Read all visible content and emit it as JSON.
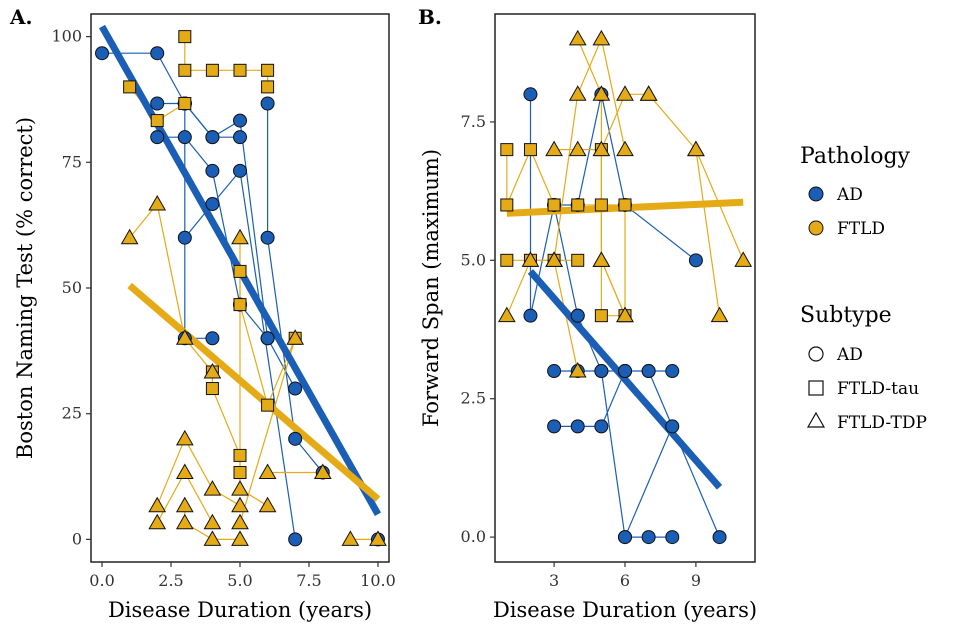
{
  "colors": {
    "AD": "#1b5eb5",
    "FTLD": "#e5ab17"
  },
  "legend": {
    "pathology_title": "Pathology",
    "pathology_items": [
      "AD",
      "FTLD"
    ],
    "subtype_title": "Subtype",
    "subtype_items": [
      "AD",
      "FTLD-tau",
      "FTLD-TDP"
    ]
  },
  "chart_data": [
    {
      "type": "scatter",
      "panel_label": "A.",
      "xlabel": "Disease Duration (years)",
      "ylabel": "Boston Naming Test (% correct)",
      "xlim": [
        -0.4,
        10.4
      ],
      "ylim": [
        -4.5,
        104.5
      ],
      "xticks": [
        0,
        2.5,
        5,
        7.5,
        10
      ],
      "xtick_labels": [
        "0.0",
        "2.5",
        "5.0",
        "7.5",
        "10.0"
      ],
      "yticks": [
        0,
        25,
        50,
        75,
        100
      ],
      "ytick_labels": [
        "0",
        "25",
        "50",
        "75",
        "100"
      ],
      "trend_lines": [
        {
          "pathology": "AD",
          "x": [
            0,
            10
          ],
          "y": [
            102,
            5
          ]
        },
        {
          "pathology": "FTLD",
          "x": [
            1,
            10
          ],
          "y": [
            50.5,
            8
          ]
        }
      ],
      "trajectories": [
        {
          "pathology": "AD",
          "subtype": "AD",
          "x": [
            0,
            2,
            3
          ],
          "y": [
            96.7,
            96.7,
            86.7
          ]
        },
        {
          "pathology": "AD",
          "subtype": "AD",
          "x": [
            2,
            3,
            4,
            5
          ],
          "y": [
            86.7,
            86.7,
            80,
            80
          ]
        },
        {
          "pathology": "AD",
          "subtype": "AD",
          "x": [
            2,
            3,
            4,
            5
          ],
          "y": [
            80,
            80,
            73.3,
            46.7
          ]
        },
        {
          "pathology": "AD",
          "subtype": "AD",
          "x": [
            3,
            4,
            5,
            6
          ],
          "y": [
            86.7,
            80,
            83.3,
            40
          ]
        },
        {
          "pathology": "AD",
          "subtype": "AD",
          "x": [
            3,
            4,
            5,
            7
          ],
          "y": [
            60,
            66.7,
            73.3,
            0
          ]
        },
        {
          "pathology": "AD",
          "subtype": "AD",
          "x": [
            3,
            3,
            4
          ],
          "y": [
            86.7,
            40,
            40
          ]
        },
        {
          "pathology": "AD",
          "subtype": "AD",
          "x": [
            5,
            6,
            7
          ],
          "y": [
            46.7,
            40,
            30
          ]
        },
        {
          "pathology": "AD",
          "subtype": "AD",
          "x": [
            6,
            6,
            7,
            8
          ],
          "y": [
            86.7,
            60,
            20,
            13.3
          ]
        },
        {
          "pathology": "AD",
          "subtype": "AD",
          "x": [
            10
          ],
          "y": [
            0
          ]
        },
        {
          "pathology": "FTLD",
          "subtype": "FTLD-tau",
          "x": [
            1,
            2,
            3
          ],
          "y": [
            90,
            83.3,
            86.7
          ]
        },
        {
          "pathology": "FTLD",
          "subtype": "FTLD-tau",
          "x": [
            3,
            3,
            4,
            5,
            6,
            6
          ],
          "y": [
            100,
            93.3,
            93.3,
            93.3,
            93.3,
            90
          ]
        },
        {
          "pathology": "FTLD",
          "subtype": "FTLD-tau",
          "x": [
            4,
            4,
            5,
            5
          ],
          "y": [
            33.3,
            30,
            16.7,
            13.3
          ]
        },
        {
          "pathology": "FTLD",
          "subtype": "FTLD-tau",
          "x": [
            5,
            5,
            6,
            7
          ],
          "y": [
            53.3,
            46.7,
            26.7,
            40
          ]
        },
        {
          "pathology": "FTLD",
          "subtype": "FTLD-TDP",
          "x": [
            1,
            2,
            3,
            4
          ],
          "y": [
            60,
            66.7,
            40,
            33.3
          ]
        },
        {
          "pathology": "FTLD",
          "subtype": "FTLD-TDP",
          "x": [
            2,
            3,
            4,
            5
          ],
          "y": [
            6.7,
            20,
            10,
            6.7
          ]
        },
        {
          "pathology": "FTLD",
          "subtype": "FTLD-TDP",
          "x": [
            2,
            3,
            4
          ],
          "y": [
            3.3,
            13.3,
            3.3
          ]
        },
        {
          "pathology": "FTLD",
          "subtype": "FTLD-TDP",
          "x": [
            3,
            3,
            4,
            5
          ],
          "y": [
            6.7,
            3.3,
            0,
            0
          ]
        },
        {
          "pathology": "FTLD",
          "subtype": "FTLD-TDP",
          "x": [
            5,
            5,
            6
          ],
          "y": [
            60,
            10,
            6.7
          ]
        },
        {
          "pathology": "FTLD",
          "subtype": "FTLD-TDP",
          "x": [
            6,
            8
          ],
          "y": [
            13.3,
            13.3
          ]
        },
        {
          "pathology": "FTLD",
          "subtype": "FTLD-TDP",
          "x": [
            5,
            7
          ],
          "y": [
            3.3,
            40
          ]
        },
        {
          "pathology": "FTLD",
          "subtype": "FTLD-TDP",
          "x": [
            9,
            10
          ],
          "y": [
            0,
            0
          ]
        }
      ]
    },
    {
      "type": "scatter",
      "panel_label": "B.",
      "xlabel": "Disease Duration (years)",
      "ylabel": "Forward Span (maximum)",
      "xlim": [
        0.5,
        11.5
      ],
      "ylim": [
        -0.45,
        9.45
      ],
      "xticks": [
        3,
        6,
        9
      ],
      "xtick_labels": [
        "3",
        "6",
        "9"
      ],
      "yticks": [
        0,
        2.5,
        5,
        7.5
      ],
      "ytick_labels": [
        "0.0",
        "2.5",
        "5.0",
        "7.5"
      ],
      "trend_lines": [
        {
          "pathology": "AD",
          "x": [
            2,
            10
          ],
          "y": [
            4.8,
            0.9
          ]
        },
        {
          "pathology": "FTLD",
          "x": [
            1,
            11
          ],
          "y": [
            5.85,
            6.05
          ]
        }
      ],
      "trajectories": [
        {
          "pathology": "AD",
          "subtype": "AD",
          "x": [
            2,
            2,
            3,
            4
          ],
          "y": [
            8,
            4,
            6,
            4
          ]
        },
        {
          "pathology": "AD",
          "subtype": "AD",
          "x": [
            3,
            4,
            5,
            6,
            9
          ],
          "y": [
            6,
            6,
            8,
            6,
            5
          ]
        },
        {
          "pathology": "AD",
          "subtype": "AD",
          "x": [
            3,
            4,
            5,
            6
          ],
          "y": [
            3,
            3,
            3,
            3
          ]
        },
        {
          "pathology": "AD",
          "subtype": "AD",
          "x": [
            3,
            4,
            5,
            6
          ],
          "y": [
            2,
            2,
            2,
            3
          ]
        },
        {
          "pathology": "AD",
          "subtype": "AD",
          "x": [
            4,
            5,
            6,
            8
          ],
          "y": [
            4,
            3,
            0,
            2
          ]
        },
        {
          "pathology": "AD",
          "subtype": "AD",
          "x": [
            6,
            7,
            8
          ],
          "y": [
            3,
            3,
            3
          ]
        },
        {
          "pathology": "AD",
          "subtype": "AD",
          "x": [
            6,
            7,
            8
          ],
          "y": [
            0,
            0,
            0
          ]
        },
        {
          "pathology": "AD",
          "subtype": "AD",
          "x": [
            7,
            10
          ],
          "y": [
            3,
            0
          ]
        },
        {
          "pathology": "FTLD",
          "subtype": "FTLD-tau",
          "x": [
            1,
            1,
            2,
            3
          ],
          "y": [
            7,
            6,
            7,
            6
          ]
        },
        {
          "pathology": "FTLD",
          "subtype": "FTLD-tau",
          "x": [
            1,
            2,
            3,
            4
          ],
          "y": [
            5,
            5,
            5,
            5
          ]
        },
        {
          "pathology": "FTLD",
          "subtype": "FTLD-tau",
          "x": [
            4,
            5,
            6
          ],
          "y": [
            6,
            6,
            6
          ]
        },
        {
          "pathology": "FTLD",
          "subtype": "FTLD-tau",
          "x": [
            5,
            5,
            6,
            6
          ],
          "y": [
            7,
            4,
            4,
            6
          ]
        },
        {
          "pathology": "FTLD",
          "subtype": "FTLD-TDP",
          "x": [
            1,
            2,
            3,
            4
          ],
          "y": [
            4,
            5,
            5,
            3
          ]
        },
        {
          "pathology": "FTLD",
          "subtype": "FTLD-TDP",
          "x": [
            3,
            4,
            5,
            6,
            7
          ],
          "y": [
            7,
            7,
            7,
            8,
            8
          ]
        },
        {
          "pathology": "FTLD",
          "subtype": "FTLD-TDP",
          "x": [
            3,
            4,
            5,
            6
          ],
          "y": [
            5,
            8,
            9,
            7
          ]
        },
        {
          "pathology": "FTLD",
          "subtype": "FTLD-TDP",
          "x": [
            4,
            5,
            5,
            6
          ],
          "y": [
            9,
            8,
            5,
            4
          ]
        },
        {
          "pathology": "FTLD",
          "subtype": "FTLD-TDP",
          "x": [
            5,
            6
          ],
          "y": [
            5,
            4
          ]
        },
        {
          "pathology": "FTLD",
          "subtype": "FTLD-TDP",
          "x": [
            7,
            9,
            10
          ],
          "y": [
            8,
            7,
            4
          ]
        },
        {
          "pathology": "FTLD",
          "subtype": "FTLD-TDP",
          "x": [
            9,
            11
          ],
          "y": [
            7,
            5
          ]
        }
      ]
    }
  ]
}
